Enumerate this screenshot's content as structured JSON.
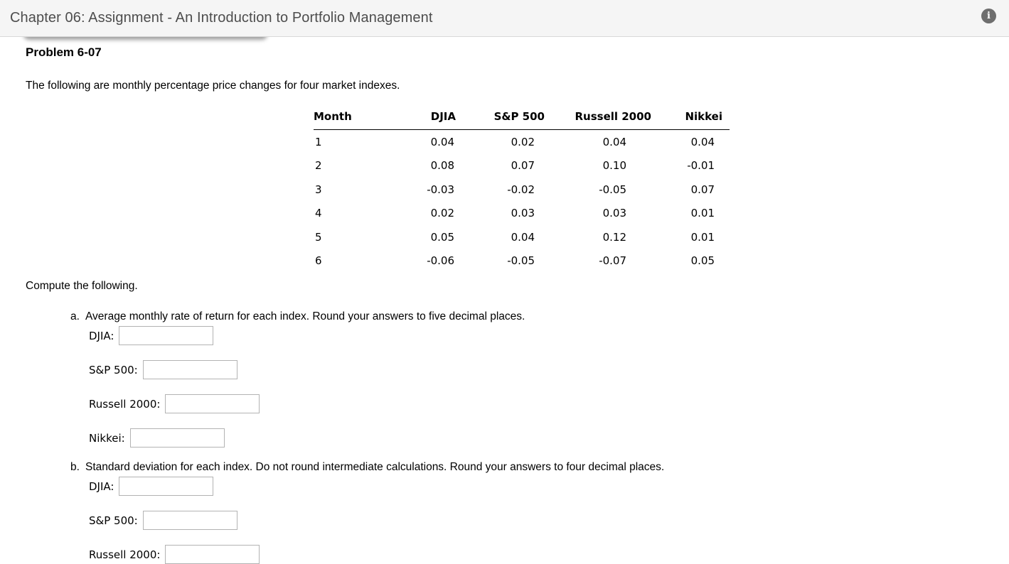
{
  "header": {
    "title": "Chapter 06: Assignment - An Introduction to Portfolio Management",
    "info_icon": "i"
  },
  "problem": {
    "title": "Problem 6-07",
    "intro": "The following are monthly percentage price changes for four market indexes.",
    "compute_label": "Compute the following."
  },
  "table": {
    "columns": [
      "Month",
      "DJIA",
      "S&P 500",
      "Russell 2000",
      "Nikkei"
    ],
    "rows": [
      [
        "1",
        "0.04",
        "0.02",
        "0.04",
        "0.04"
      ],
      [
        "2",
        "0.08",
        "0.07",
        "0.10",
        "-0.01"
      ],
      [
        "3",
        "-0.03",
        "-0.02",
        "-0.05",
        "0.07"
      ],
      [
        "4",
        "0.02",
        "0.03",
        "0.03",
        "0.01"
      ],
      [
        "5",
        "0.05",
        "0.04",
        "0.12",
        "0.01"
      ],
      [
        "6",
        "-0.06",
        "-0.05",
        "-0.07",
        "0.05"
      ]
    ]
  },
  "parts": [
    {
      "letter": "a.",
      "text": "Average monthly rate of return for each index. Round your answers to five decimal places.",
      "fields": [
        {
          "label": "DJIA:",
          "value": ""
        },
        {
          "label": "S&P 500:",
          "value": ""
        },
        {
          "label": "Russell 2000:",
          "value": ""
        },
        {
          "label": "Nikkei:",
          "value": ""
        }
      ]
    },
    {
      "letter": "b.",
      "text": "Standard deviation for each index. Do not round intermediate calculations. Round your answers to four decimal places.",
      "fields": [
        {
          "label": "DJIA:",
          "value": ""
        },
        {
          "label": "S&P 500:",
          "value": ""
        },
        {
          "label": "Russell 2000:",
          "value": ""
        }
      ]
    }
  ]
}
